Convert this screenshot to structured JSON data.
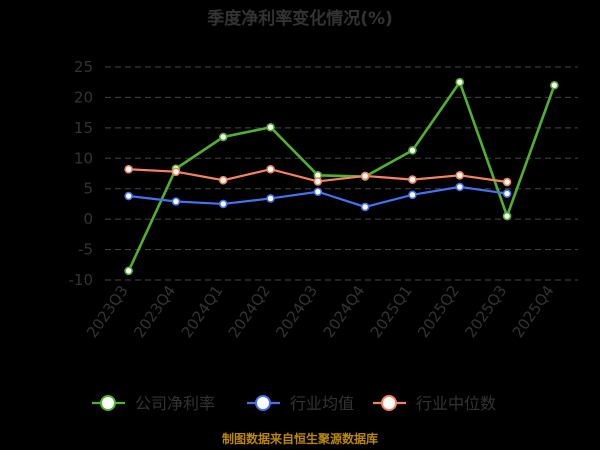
{
  "chart_data": {
    "type": "line",
    "title": "季度净利率变化情况(%)",
    "unit_label": "(%)",
    "categories": [
      "2023Q3",
      "2023Q4",
      "2024Q1",
      "2024Q2",
      "2024Q3",
      "2024Q4",
      "2025Q1",
      "2025Q2",
      "2025Q3",
      "2025Q4"
    ],
    "ylim": [
      -10,
      25
    ],
    "yticks": [
      25,
      20,
      15,
      10,
      5,
      0,
      -5,
      -10
    ],
    "grid": true,
    "legend_position": "bottom",
    "series": [
      {
        "name": "公司净利率",
        "color": "#52b030",
        "values": [
          -8.5,
          8.3,
          13.5,
          15.1,
          7.2,
          7.0,
          11.3,
          22.5,
          0.5,
          22.0
        ]
      },
      {
        "name": "行业均值",
        "color": "#4472f0",
        "values": [
          3.8,
          2.9,
          2.5,
          3.4,
          4.5,
          2.0,
          4.0,
          5.3,
          4.2,
          null
        ]
      },
      {
        "name": "行业中位数",
        "color": "#f4845f",
        "values": [
          8.2,
          7.8,
          6.4,
          8.2,
          6.2,
          7.1,
          6.5,
          7.2,
          6.1,
          null
        ]
      }
    ]
  },
  "source": "制图数据来自恒生聚源数据库"
}
